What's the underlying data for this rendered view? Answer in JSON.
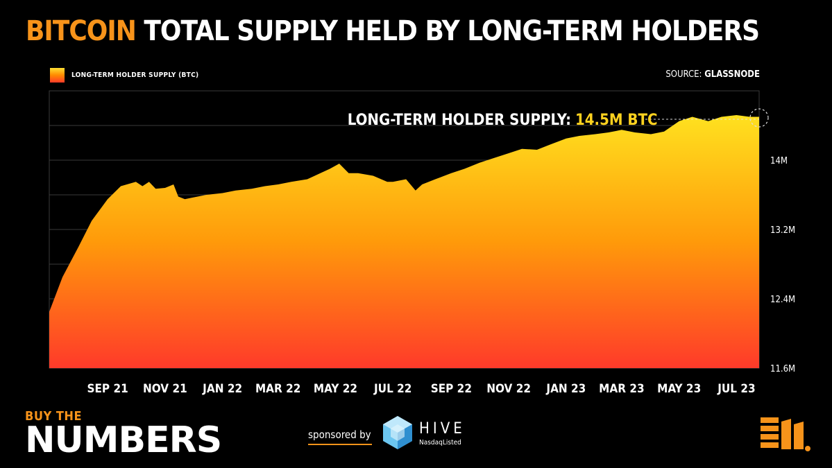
{
  "title": {
    "accent": "BITCOIN",
    "rest": "TOTAL SUPPLY HELD BY LONG-TERM HOLDERS"
  },
  "source": {
    "prefix": "SOURCE:",
    "name": "GLASSNODE"
  },
  "branding": {
    "buy_the": "BUY THE",
    "numbers": "NUMBERS",
    "sponsored_by": "sponsored by",
    "sponsor_name": "HIVE",
    "sponsor_sub": "NasdaqListed"
  },
  "colors": {
    "accent": "#f7931a",
    "fill_top": "#ffe11f",
    "fill_mid": "#ff9a0a",
    "fill_bottom": "#ff3a2a",
    "annotation_value": "#ffd21f"
  },
  "chart_data": {
    "type": "area",
    "legend": [
      "LONG-TERM HOLDER SUPPLY (BTC)"
    ],
    "legend_position": "top-left",
    "annotation": {
      "label": "LONG-TERM HOLDER SUPPLY:",
      "value": "14.5M BTC"
    },
    "x_ticks": [
      "SEP 21",
      "NOV 21",
      "JAN 22",
      "MAR 22",
      "MAY 22",
      "JUL 22",
      "SEP 22",
      "NOV 22",
      "JAN 23",
      "MAR 23",
      "MAY 23",
      "JUL 23"
    ],
    "y_ticks": [
      "11.6M",
      "12.4M",
      "13.2M",
      "14M"
    ],
    "y_tick_values": [
      11.6,
      12.4,
      13.2,
      14.0
    ],
    "ylim": [
      11.6,
      14.8
    ],
    "grid": true,
    "series": [
      {
        "name": "LONG-TERM HOLDER SUPPLY (BTC)",
        "x": [
          "2021-07-01",
          "2021-07-15",
          "2021-08-01",
          "2021-08-15",
          "2021-09-01",
          "2021-09-15",
          "2021-10-01",
          "2021-10-08",
          "2021-10-15",
          "2021-10-22",
          "2021-11-01",
          "2021-11-10",
          "2021-11-15",
          "2021-11-22",
          "2021-12-01",
          "2021-12-15",
          "2022-01-01",
          "2022-01-15",
          "2022-02-01",
          "2022-02-15",
          "2022-03-01",
          "2022-03-15",
          "2022-04-01",
          "2022-04-15",
          "2022-04-25",
          "2022-05-05",
          "2022-05-15",
          "2022-05-25",
          "2022-06-10",
          "2022-06-25",
          "2022-07-01",
          "2022-07-15",
          "2022-07-25",
          "2022-08-01",
          "2022-08-15",
          "2022-09-01",
          "2022-09-15",
          "2022-10-01",
          "2022-10-15",
          "2022-11-01",
          "2022-11-15",
          "2022-12-01",
          "2022-12-15",
          "2023-01-01",
          "2023-01-15",
          "2023-02-01",
          "2023-02-15",
          "2023-03-01",
          "2023-03-15",
          "2023-04-01",
          "2023-04-15",
          "2023-05-01",
          "2023-05-15",
          "2023-06-01",
          "2023-06-15",
          "2023-07-01",
          "2023-07-15",
          "2023-07-25"
        ],
        "values": [
          12.25,
          12.65,
          13.0,
          13.3,
          13.55,
          13.7,
          13.75,
          13.7,
          13.75,
          13.67,
          13.68,
          13.72,
          13.58,
          13.55,
          13.57,
          13.6,
          13.62,
          13.65,
          13.67,
          13.7,
          13.72,
          13.75,
          13.78,
          13.85,
          13.9,
          13.96,
          13.85,
          13.85,
          13.82,
          13.75,
          13.75,
          13.78,
          13.65,
          13.72,
          13.78,
          13.85,
          13.9,
          13.97,
          14.02,
          14.08,
          14.13,
          14.12,
          14.18,
          14.25,
          14.28,
          14.3,
          14.32,
          14.35,
          14.32,
          14.3,
          14.33,
          14.45,
          14.5,
          14.45,
          14.5,
          14.52,
          14.5,
          14.5
        ]
      }
    ]
  }
}
